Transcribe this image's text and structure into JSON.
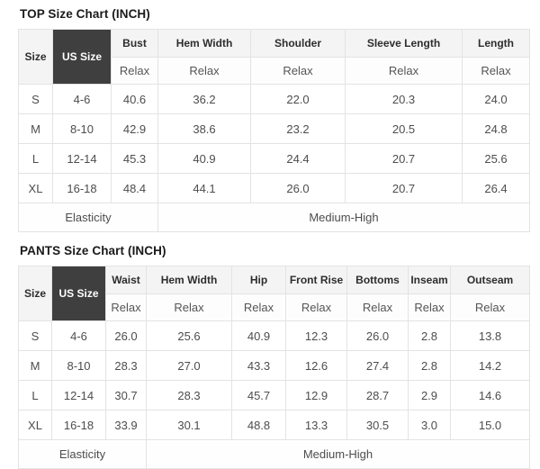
{
  "colors": {
    "dark-cell": "#3f3f3f",
    "header-bg": "#f4f4f4",
    "border": "#e3e3e3",
    "title-text": "#1a1a1a"
  },
  "chart_data": [
    {
      "type": "table",
      "title": "TOP Size Chart (INCH)",
      "corner_headers": [
        "Size",
        "US Size"
      ],
      "measure_columns": [
        "Bust",
        "Hem Width",
        "Shoulder",
        "Sleeve Length",
        "Length"
      ],
      "fit_row_label": "Relax",
      "rows": [
        {
          "size": "S",
          "us_size": "4-6",
          "values": [
            "40.6",
            "36.2",
            "22.0",
            "20.3",
            "24.0"
          ]
        },
        {
          "size": "M",
          "us_size": "8-10",
          "values": [
            "42.9",
            "38.6",
            "23.2",
            "20.5",
            "24.8"
          ]
        },
        {
          "size": "L",
          "us_size": "12-14",
          "values": [
            "45.3",
            "40.9",
            "24.4",
            "20.7",
            "25.6"
          ]
        },
        {
          "size": "XL",
          "us_size": "16-18",
          "values": [
            "48.4",
            "44.1",
            "26.0",
            "20.7",
            "26.4"
          ]
        }
      ],
      "footer": {
        "label": "Elasticity",
        "value": "Medium-High"
      }
    },
    {
      "type": "table",
      "title": "PANTS Size Chart (INCH)",
      "corner_headers": [
        "Size",
        "US Size"
      ],
      "measure_columns": [
        "Waist",
        "Hem Width",
        "Hip",
        "Front Rise",
        "Bottoms",
        "Inseam",
        "Outseam"
      ],
      "fit_row_label": "Relax",
      "rows": [
        {
          "size": "S",
          "us_size": "4-6",
          "values": [
            "26.0",
            "25.6",
            "40.9",
            "12.3",
            "26.0",
            "2.8",
            "13.8"
          ]
        },
        {
          "size": "M",
          "us_size": "8-10",
          "values": [
            "28.3",
            "27.0",
            "43.3",
            "12.6",
            "27.4",
            "2.8",
            "14.2"
          ]
        },
        {
          "size": "L",
          "us_size": "12-14",
          "values": [
            "30.7",
            "28.3",
            "45.7",
            "12.9",
            "28.7",
            "2.9",
            "14.6"
          ]
        },
        {
          "size": "XL",
          "us_size": "16-18",
          "values": [
            "33.9",
            "30.1",
            "48.8",
            "13.3",
            "30.5",
            "3.0",
            "15.0"
          ]
        }
      ],
      "footer": {
        "label": "Elasticity",
        "value": "Medium-High"
      }
    }
  ]
}
